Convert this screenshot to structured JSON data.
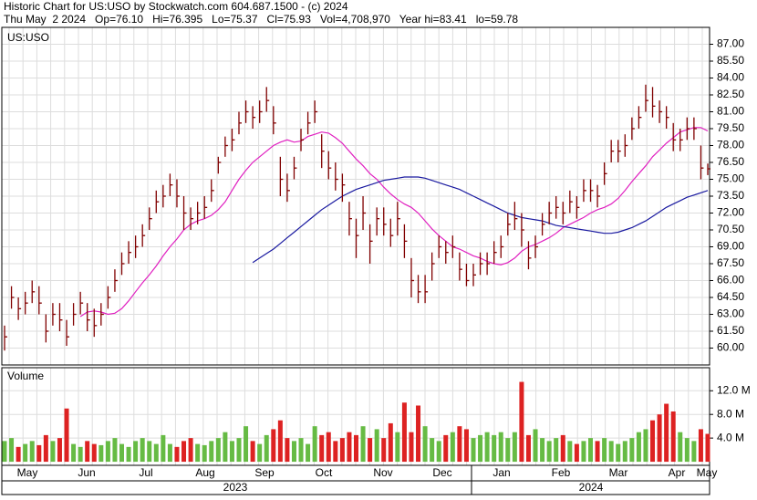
{
  "header": {
    "title": "Historic Chart for US:USO by Stockwatch.com 604.687.1500 - (c) 2024",
    "quote": "Thu May  2 2024   Op=76.10   Hi=76.395   Lo=75.37   Cl=75.93   Vol=4,708,970   Year hi=83.41   lo=59.78"
  },
  "chart_data": [
    {
      "type": "ohlc",
      "label": "US:USO",
      "bar_color": "#800000",
      "ylim": [
        58.5,
        88.5
      ],
      "yticks": [
        {
          "value": 60,
          "label": "60.00"
        },
        {
          "value": 61.5,
          "label": "61.50"
        },
        {
          "value": 63,
          "label": "63.00"
        },
        {
          "value": 64.5,
          "label": "64.50"
        },
        {
          "value": 66,
          "label": "66.00"
        },
        {
          "value": 67.5,
          "label": "67.50"
        },
        {
          "value": 69,
          "label": "69.00"
        },
        {
          "value": 70.5,
          "label": "70.50"
        },
        {
          "value": 72,
          "label": "72.00"
        },
        {
          "value": 73.5,
          "label": "73.50"
        },
        {
          "value": 75,
          "label": "75.00"
        },
        {
          "value": 76.5,
          "label": "76.50"
        },
        {
          "value": 78,
          "label": "78.00"
        },
        {
          "value": 79.5,
          "label": "79.50"
        },
        {
          "value": 81,
          "label": "81.00"
        },
        {
          "value": 82.5,
          "label": "82.50"
        },
        {
          "value": 84,
          "label": "84.00"
        },
        {
          "value": 85.5,
          "label": "85.50"
        },
        {
          "value": 87,
          "label": "87.00"
        }
      ],
      "high": [
        62,
        65.5,
        64.5,
        65,
        66,
        65.5,
        63,
        64,
        64,
        62.5,
        64,
        65,
        64,
        63.5,
        64,
        65.5,
        67,
        68.5,
        69.5,
        70,
        71,
        72.5,
        74,
        74.5,
        75.5,
        75,
        73.5,
        72.5,
        73,
        73.5,
        75,
        77,
        78.8,
        79.5,
        81,
        82,
        81.5,
        82,
        83.2,
        81.5,
        77,
        75.5,
        77,
        79.5,
        81,
        82,
        79,
        77.5,
        76.5,
        75.5,
        73,
        71.5,
        73.5,
        71,
        72.5,
        72.5,
        71.5,
        73,
        71,
        68,
        66.5,
        66.5,
        68.5,
        70,
        69.5,
        70,
        68.5,
        67.5,
        67.5,
        68.5,
        68.5,
        69.5,
        70,
        72,
        73,
        72,
        69.5,
        70,
        72,
        73,
        73.5,
        73,
        74,
        73.5,
        75,
        75,
        74.5,
        76.5,
        78.5,
        78.5,
        79,
        80.5,
        81.5,
        83.41,
        83.2,
        82,
        81.5,
        80,
        79.5,
        80.5,
        80.5,
        78,
        76.395
      ],
      "low": [
        59.78,
        63.5,
        62.5,
        63,
        64,
        63,
        60.5,
        62,
        61.5,
        60.2,
        62,
        63,
        61.5,
        61,
        62,
        63.5,
        65,
        66.5,
        67.5,
        68,
        69,
        70.5,
        72,
        72.5,
        73.5,
        72.5,
        70.5,
        70.5,
        71,
        71.5,
        73,
        75.5,
        77,
        77.5,
        79,
        80,
        79.5,
        80,
        81,
        79,
        73.5,
        73,
        75,
        77.5,
        79,
        80,
        76,
        75,
        74,
        73,
        70,
        68,
        70.5,
        67.5,
        70,
        70,
        69,
        70,
        68,
        64.5,
        64,
        64,
        66,
        68,
        67.5,
        68,
        66,
        65.5,
        65.5,
        66.5,
        66.5,
        67.5,
        68,
        70,
        70.5,
        69,
        67,
        68,
        70,
        71,
        71.5,
        71,
        72,
        71.5,
        73,
        73,
        72.5,
        74.5,
        76.5,
        76.5,
        77,
        78.5,
        79.5,
        81,
        80.5,
        80,
        79.5,
        77.5,
        77.5,
        78.5,
        78.5,
        75,
        75.37
      ],
      "close": [
        61,
        64.5,
        63.5,
        64,
        65,
        64,
        61.5,
        63,
        62.5,
        61,
        63,
        64,
        62.5,
        62,
        63,
        64.5,
        66,
        67.5,
        68.5,
        69,
        70,
        71.5,
        73,
        73.5,
        74.5,
        73.5,
        72,
        71.5,
        72,
        72.5,
        74,
        76.5,
        78,
        78.5,
        80,
        81,
        80.5,
        81,
        82,
        80,
        75,
        74,
        76,
        78.5,
        80,
        81,
        77.5,
        76,
        75,
        74.5,
        71.5,
        70,
        72,
        69.5,
        71.5,
        71,
        70,
        71.5,
        69.5,
        66,
        65,
        65,
        67.5,
        69,
        68.5,
        69,
        67,
        66,
        66.5,
        67.5,
        67.5,
        68.5,
        69,
        71,
        71.5,
        70.5,
        68,
        69,
        71,
        72,
        72.5,
        72,
        73,
        72.5,
        74,
        74,
        73.5,
        75.5,
        77.5,
        77.5,
        78,
        79.5,
        80.5,
        82,
        81.5,
        81,
        80.5,
        78.5,
        78.5,
        79.5,
        79.5,
        76,
        75.93
      ],
      "series": [
        {
          "color": "#e020c0",
          "values": [
            null,
            null,
            null,
            null,
            null,
            null,
            null,
            null,
            null,
            null,
            null,
            62.8,
            63.2,
            63.3,
            63.2,
            63.0,
            63.1,
            63.5,
            64.2,
            65,
            65.8,
            66.5,
            67.3,
            68.2,
            69,
            69.7,
            70.5,
            71,
            71.3,
            71.5,
            71.8,
            72.3,
            73,
            74,
            75,
            75.8,
            76.5,
            77,
            77.5,
            78,
            78.3,
            78.5,
            78.3,
            78.4,
            78.8,
            79,
            79.2,
            79.1,
            78.7,
            78.2,
            77.5,
            76.8,
            76.2,
            75.5,
            75,
            74.3,
            73.7,
            73.2,
            72.8,
            72.5,
            72,
            71.3,
            70.6,
            70,
            69.5,
            69,
            68.8,
            68.5,
            68.2,
            68,
            67.7,
            67.5,
            67.4,
            67.6,
            68,
            68.6,
            69,
            69.2,
            69.5,
            69.8,
            70.2,
            70.7,
            71,
            71.3,
            71.6,
            72,
            72.3,
            72.5,
            72.8,
            73.3,
            74,
            74.8,
            75.5,
            76.2,
            77,
            77.6,
            78.2,
            78.7,
            79.2,
            79.4,
            79.6,
            79.6,
            79.3
          ]
        },
        {
          "color": "#1a1aa0",
          "values": [
            null,
            null,
            null,
            null,
            null,
            null,
            null,
            null,
            null,
            null,
            null,
            null,
            null,
            null,
            null,
            null,
            null,
            null,
            null,
            null,
            null,
            null,
            null,
            null,
            null,
            null,
            null,
            null,
            null,
            null,
            null,
            null,
            null,
            null,
            null,
            null,
            67.6,
            68.0,
            68.4,
            68.8,
            69.3,
            69.8,
            70.3,
            70.8,
            71.3,
            71.8,
            72.3,
            72.7,
            73.1,
            73.5,
            73.8,
            74.1,
            74.3,
            74.5,
            74.7,
            74.9,
            75.0,
            75.1,
            75.2,
            75.2,
            75.2,
            75.1,
            74.9,
            74.7,
            74.5,
            74.3,
            74.1,
            73.8,
            73.5,
            73.2,
            72.9,
            72.6,
            72.3,
            72.0,
            71.8,
            71.6,
            71.5,
            71.4,
            71.3,
            71.1,
            70.9,
            70.8,
            70.7,
            70.6,
            70.5,
            70.4,
            70.3,
            70.2,
            70.2,
            70.3,
            70.5,
            70.7,
            71.0,
            71.3,
            71.7,
            72.1,
            72.5,
            72.8,
            73.1,
            73.4,
            73.6,
            73.8,
            74.0
          ]
        }
      ],
      "months": [
        "May",
        "Jun",
        "Jul",
        "Aug",
        "Sep",
        "Oct",
        "Nov",
        "Dec",
        "Jan",
        "Feb",
        "Mar",
        "Apr",
        "May"
      ],
      "years": [
        "2023",
        "2024"
      ]
    },
    {
      "type": "bar",
      "label": "Volume",
      "up_color": "#66bb44",
      "down_color": "#dd2222",
      "ylim": [
        -0.3,
        15.9
      ],
      "yticks": [
        {
          "value": 4,
          "label": "4.0 M"
        },
        {
          "value": 8,
          "label": "8.0 M"
        },
        {
          "value": 12,
          "label": "12.0 M"
        }
      ],
      "values": [
        3.5,
        4,
        2.5,
        3,
        3.5,
        2.8,
        4.5,
        3.5,
        4,
        9,
        3,
        2.5,
        3.5,
        3,
        2.8,
        3.5,
        4,
        3,
        2.5,
        3.5,
        4,
        3.5,
        3,
        4.5,
        3,
        2.5,
        3.5,
        4,
        3,
        2.8,
        3.5,
        4,
        5,
        3.5,
        4,
        6,
        3.5,
        3,
        4.5,
        5.5,
        7,
        4,
        3.5,
        4,
        3,
        6,
        4.5,
        5,
        3.5,
        4,
        5,
        4.5,
        6,
        4,
        5.5,
        4,
        6.5,
        5,
        10,
        5,
        9.5,
        6,
        4,
        3.5,
        4.5,
        5,
        6,
        5.5,
        4,
        4.5,
        5,
        4.5,
        5,
        4,
        5,
        13.5,
        4.5,
        5.5,
        4,
        3.5,
        4,
        4.5,
        3.5,
        3,
        3.5,
        4,
        3.5,
        4,
        3.5,
        3,
        3.5,
        4,
        5,
        5.5,
        7,
        8,
        9.8,
        8.5,
        5,
        4,
        3.5,
        5.5,
        4.71
      ]
    }
  ]
}
